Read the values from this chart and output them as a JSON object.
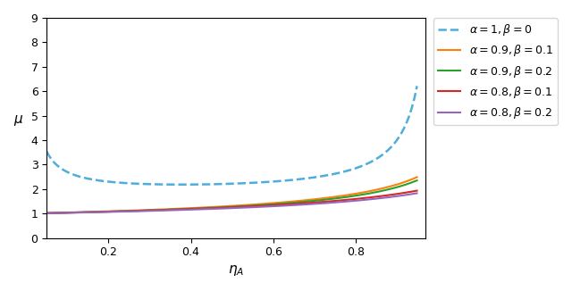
{
  "eta_range": [
    0.05,
    0.949
  ],
  "n_points": 1000,
  "series": [
    {
      "alpha": 1.0,
      "beta": 0.0,
      "color": "#4daedb",
      "linestyle": "--",
      "linewidth": 1.8,
      "label": "$\\alpha = 1, \\beta = 0$"
    },
    {
      "alpha": 0.9,
      "beta": 0.1,
      "color": "#ff7f0e",
      "linestyle": "-",
      "linewidth": 1.5,
      "label": "$\\alpha = 0.9, \\beta = 0.1$"
    },
    {
      "alpha": 0.9,
      "beta": 0.2,
      "color": "#2ca02c",
      "linestyle": "-",
      "linewidth": 1.5,
      "label": "$\\alpha = 0.9, \\beta = 0.2$"
    },
    {
      "alpha": 0.8,
      "beta": 0.1,
      "color": "#d62728",
      "linestyle": "-",
      "linewidth": 1.5,
      "label": "$\\alpha = 0.8, \\beta = 0.1$"
    },
    {
      "alpha": 0.8,
      "beta": 0.2,
      "color": "#9467bd",
      "linestyle": "-",
      "linewidth": 1.5,
      "label": "$\\alpha = 0.8, \\beta = 0.2$"
    }
  ],
  "ylim": [
    0,
    9
  ],
  "xlim": [
    0.05,
    0.97
  ],
  "xlabel": "$\\eta_A$",
  "ylabel": "$\\mu$",
  "xticks": [
    0.2,
    0.4,
    0.6,
    0.8
  ],
  "yticks": [
    0,
    1,
    2,
    3,
    4,
    5,
    6,
    7,
    8,
    9
  ],
  "scale_dashed": 0.88,
  "scale_solid": 0.78
}
